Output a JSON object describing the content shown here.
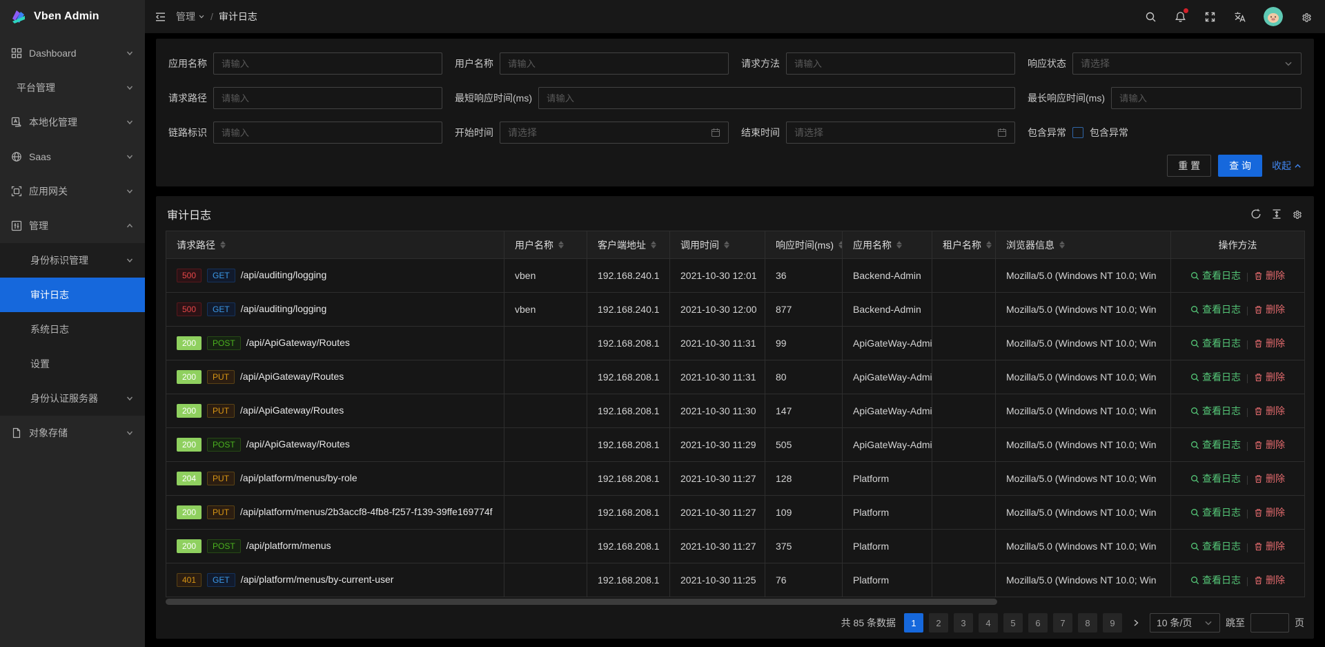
{
  "app": {
    "title": "Vben Admin"
  },
  "header": {
    "breadcrumb": {
      "section": "管理",
      "separator": "/",
      "current": "审计日志"
    },
    "icons": [
      "search-icon",
      "bell-icon",
      "fullscreen-icon",
      "translate-icon",
      "avatar",
      "gear-icon"
    ],
    "notification_dot": true
  },
  "sidebar": {
    "items": [
      {
        "label": "Dashboard"
      },
      {
        "label": "平台管理"
      },
      {
        "label": "本地化管理"
      },
      {
        "label": "Saas"
      },
      {
        "label": "应用网关"
      },
      {
        "label": "管理"
      },
      {
        "label": "身份标识管理"
      },
      {
        "label": "审计日志"
      },
      {
        "label": "系统日志"
      },
      {
        "label": "设置"
      },
      {
        "label": "身份认证服务器"
      },
      {
        "label": "对象存储"
      }
    ],
    "active_item": "审计日志"
  },
  "filter": {
    "fields": {
      "app_name": {
        "label": "应用名称",
        "placeholder": "请输入"
      },
      "user_name": {
        "label": "用户名称",
        "placeholder": "请输入"
      },
      "request_method": {
        "label": "请求方法",
        "placeholder": "请输入"
      },
      "response_status": {
        "label": "响应状态",
        "placeholder": "请选择"
      },
      "request_path": {
        "label": "请求路径",
        "placeholder": "请输入"
      },
      "min_response_time": {
        "label": "最短响应时间(ms)",
        "placeholder": "请输入"
      },
      "max_response_time": {
        "label": "最长响应时间(ms)",
        "placeholder": "请输入"
      },
      "trace_id": {
        "label": "链路标识",
        "placeholder": "请输入"
      },
      "start_time": {
        "label": "开始时间",
        "placeholder": "请选择"
      },
      "end_time": {
        "label": "结束时间",
        "placeholder": "请选择"
      },
      "include_exception": {
        "label": "包含异常",
        "checkbox_label": "包含异常",
        "checked": false
      }
    },
    "buttons": {
      "reset": "重 置",
      "search": "查 询",
      "collapse": "收起"
    }
  },
  "card": {
    "title": "审计日志"
  },
  "table": {
    "columns": [
      {
        "key": "path",
        "label": "请求路径",
        "sortable": true
      },
      {
        "key": "user",
        "label": "用户名称",
        "sortable": true
      },
      {
        "key": "client",
        "label": "客户端地址",
        "sortable": true
      },
      {
        "key": "time",
        "label": "调用时间",
        "sortable": true
      },
      {
        "key": "resp",
        "label": "响应时间(ms)",
        "sortable": true
      },
      {
        "key": "app",
        "label": "应用名称",
        "sortable": true
      },
      {
        "key": "tenant",
        "label": "租户名称",
        "sortable": true
      },
      {
        "key": "browser",
        "label": "浏览器信息",
        "sortable": true
      },
      {
        "key": "actions",
        "label": "操作方法",
        "sortable": false
      }
    ],
    "actions": {
      "view": "查看日志",
      "delete": "删除"
    },
    "rows": [
      {
        "status": "500",
        "status_kind": "error",
        "method": "GET",
        "method_kind": "blue",
        "path": "/api/auditing/logging",
        "user": "vben",
        "client": "192.168.240.1",
        "time": "2021-10-30 12:01",
        "resp": "36",
        "app": "Backend-Admin",
        "tenant": "",
        "browser": "Mozilla/5.0 (Windows NT 10.0; Win"
      },
      {
        "status": "500",
        "status_kind": "error",
        "method": "GET",
        "method_kind": "blue",
        "path": "/api/auditing/logging",
        "user": "vben",
        "client": "192.168.240.1",
        "time": "2021-10-30 12:00",
        "resp": "877",
        "app": "Backend-Admin",
        "tenant": "",
        "browser": "Mozilla/5.0 (Windows NT 10.0; Win"
      },
      {
        "status": "200",
        "status_kind": "success",
        "method": "POST",
        "method_kind": "green",
        "path": "/api/ApiGateway/Routes",
        "user": "",
        "client": "192.168.208.1",
        "time": "2021-10-30 11:31",
        "resp": "99",
        "app": "ApiGateWay-Admin",
        "tenant": "",
        "browser": "Mozilla/5.0 (Windows NT 10.0; Win"
      },
      {
        "status": "200",
        "status_kind": "success",
        "method": "PUT",
        "method_kind": "orange",
        "path": "/api/ApiGateway/Routes",
        "user": "",
        "client": "192.168.208.1",
        "time": "2021-10-30 11:31",
        "resp": "80",
        "app": "ApiGateWay-Admin",
        "tenant": "",
        "browser": "Mozilla/5.0 (Windows NT 10.0; Win"
      },
      {
        "status": "200",
        "status_kind": "success",
        "method": "PUT",
        "method_kind": "orange",
        "path": "/api/ApiGateway/Routes",
        "user": "",
        "client": "192.168.208.1",
        "time": "2021-10-30 11:30",
        "resp": "147",
        "app": "ApiGateWay-Admin",
        "tenant": "",
        "browser": "Mozilla/5.0 (Windows NT 10.0; Win"
      },
      {
        "status": "200",
        "status_kind": "success",
        "method": "POST",
        "method_kind": "green",
        "path": "/api/ApiGateway/Routes",
        "user": "",
        "client": "192.168.208.1",
        "time": "2021-10-30 11:29",
        "resp": "505",
        "app": "ApiGateWay-Admin",
        "tenant": "",
        "browser": "Mozilla/5.0 (Windows NT 10.0; Win"
      },
      {
        "status": "204",
        "status_kind": "success",
        "method": "PUT",
        "method_kind": "orange",
        "path": "/api/platform/menus/by-role",
        "user": "",
        "client": "192.168.208.1",
        "time": "2021-10-30 11:27",
        "resp": "128",
        "app": "Platform",
        "tenant": "",
        "browser": "Mozilla/5.0 (Windows NT 10.0; Win"
      },
      {
        "status": "200",
        "status_kind": "success",
        "method": "PUT",
        "method_kind": "orange",
        "path": "/api/platform/menus/2b3accf8-4fb8-f257-f139-39ffe169774f",
        "user": "",
        "client": "192.168.208.1",
        "time": "2021-10-30 11:27",
        "resp": "109",
        "app": "Platform",
        "tenant": "",
        "browser": "Mozilla/5.0 (Windows NT 10.0; Win"
      },
      {
        "status": "200",
        "status_kind": "success",
        "method": "POST",
        "method_kind": "green",
        "path": "/api/platform/menus",
        "user": "",
        "client": "192.168.208.1",
        "time": "2021-10-30 11:27",
        "resp": "375",
        "app": "Platform",
        "tenant": "",
        "browser": "Mozilla/5.0 (Windows NT 10.0; Win"
      },
      {
        "status": "401",
        "status_kind": "warning",
        "method": "GET",
        "method_kind": "blue",
        "path": "/api/platform/menus/by-current-user",
        "user": "",
        "client": "192.168.208.1",
        "time": "2021-10-30 11:25",
        "resp": "76",
        "app": "Platform",
        "tenant": "",
        "browser": "Mozilla/5.0 (Windows NT 10.0; Win"
      }
    ]
  },
  "pagination": {
    "total_text": "共 85 条数据",
    "pages": [
      "1",
      "2",
      "3",
      "4",
      "5",
      "6",
      "7",
      "8",
      "9"
    ],
    "active_page": "1",
    "page_size": "10 条/页",
    "jump_prefix": "跳至",
    "jump_suffix": "页"
  },
  "colors": {
    "primary": "#1668dc",
    "link": "#4086f0",
    "tag_error_text": "#e84749",
    "tag_success_bg": "#8fd05f",
    "tag_warning_text": "#d89614",
    "method_get_text": "#3c9ae8",
    "method_post_text": "#4bb21f",
    "action_view_green": "#55c878",
    "action_delete_red": "#e0696c",
    "notification_dot": "#d32029",
    "sidebar_bg": "#262626",
    "card_bg": "#161616",
    "page_bg": "#000000"
  }
}
